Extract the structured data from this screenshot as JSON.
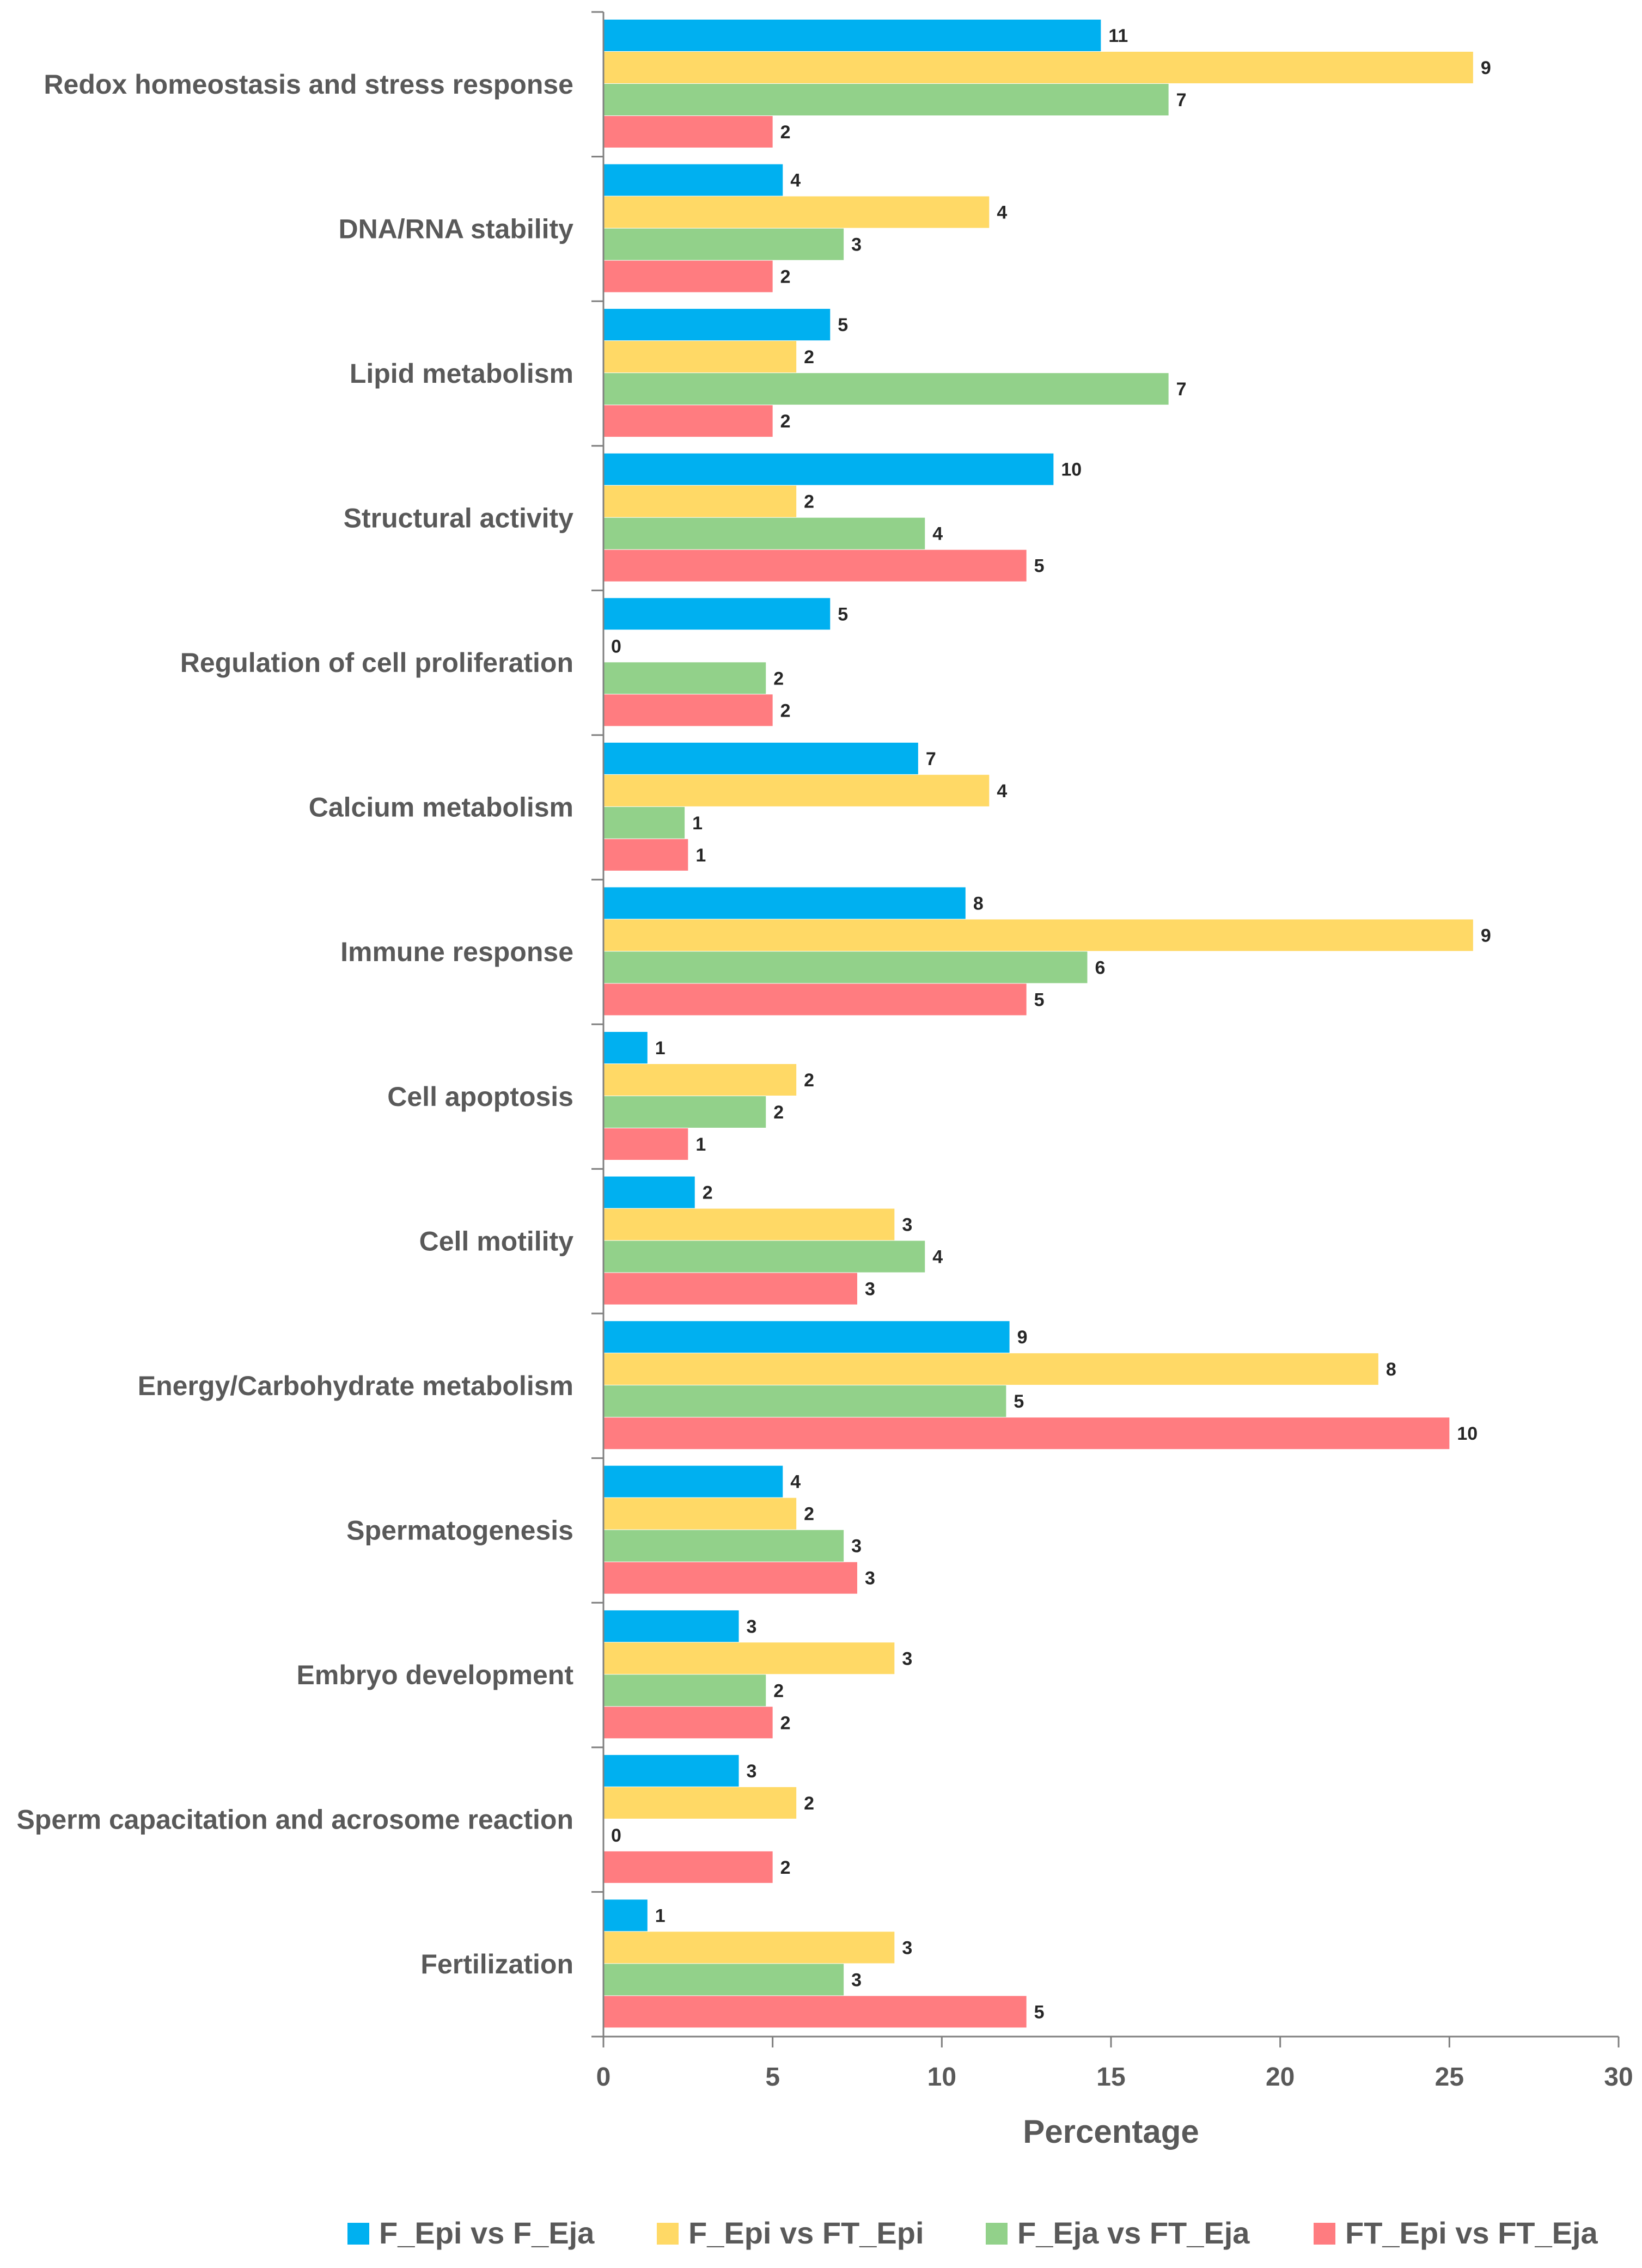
{
  "chart_data": {
    "type": "bar",
    "orientation": "horizontal",
    "title": "",
    "xlabel": "Percentage",
    "ylabel": "",
    "xlim": [
      0,
      30
    ],
    "xticks": [
      0,
      5,
      10,
      15,
      20,
      25,
      30
    ],
    "grid": false,
    "legend_position": "bottom",
    "categories": [
      "Redox homeostasis and stress response",
      "DNA/RNA stability",
      "Lipid metabolism",
      "Structural activity",
      "Regulation of cell proliferation",
      "Calcium metabolism",
      "Immune response",
      "Cell apoptosis",
      "Cell motility",
      "Energy/Carbohydrate metabolism",
      "Spermatogenesis",
      "Embryo development",
      "Sperm capacitation and acrosome reaction",
      "Fertilization"
    ],
    "series": [
      {
        "name": "F_Epi vs F_Eja",
        "color": "#00B0F0",
        "values": [
          14.7,
          5.3,
          6.7,
          13.3,
          6.7,
          9.3,
          10.7,
          1.3,
          2.7,
          12.0,
          5.3,
          4.0,
          4.0,
          1.3
        ],
        "labels": [
          "11",
          "4",
          "5",
          "10",
          "5",
          "7",
          "8",
          "1",
          "2",
          "9",
          "4",
          "3",
          "3",
          "1"
        ]
      },
      {
        "name": "F_Epi vs FT_Epi",
        "color": "#FFD966",
        "values": [
          25.7,
          11.4,
          5.7,
          5.7,
          0,
          11.4,
          25.7,
          5.7,
          8.6,
          22.9,
          5.7,
          8.6,
          5.7,
          8.6
        ],
        "labels": [
          "9",
          "4",
          "2",
          "2",
          "0",
          "4",
          "9",
          "2",
          "3",
          "8",
          "2",
          "3",
          "2",
          "3"
        ]
      },
      {
        "name": "F_Eja vs FT_Eja",
        "color": "#92D18A",
        "values": [
          16.7,
          7.1,
          16.7,
          9.5,
          4.8,
          2.4,
          14.3,
          4.8,
          9.5,
          11.9,
          7.1,
          4.8,
          0,
          7.1
        ],
        "labels": [
          "7",
          "3",
          "7",
          "4",
          "2",
          "1",
          "6",
          "2",
          "4",
          "5",
          "3",
          "2",
          "0",
          "3"
        ]
      },
      {
        "name": "FT_Epi vs FT_Eja",
        "color": "#FF7C80",
        "values": [
          5.0,
          5.0,
          5.0,
          12.5,
          5.0,
          2.5,
          12.5,
          2.5,
          7.5,
          25.0,
          7.5,
          5.0,
          5.0,
          12.5
        ],
        "labels": [
          "2",
          "2",
          "2",
          "5",
          "2",
          "1",
          "5",
          "1",
          "3",
          "10",
          "3",
          "2",
          "2",
          "5"
        ]
      }
    ]
  }
}
